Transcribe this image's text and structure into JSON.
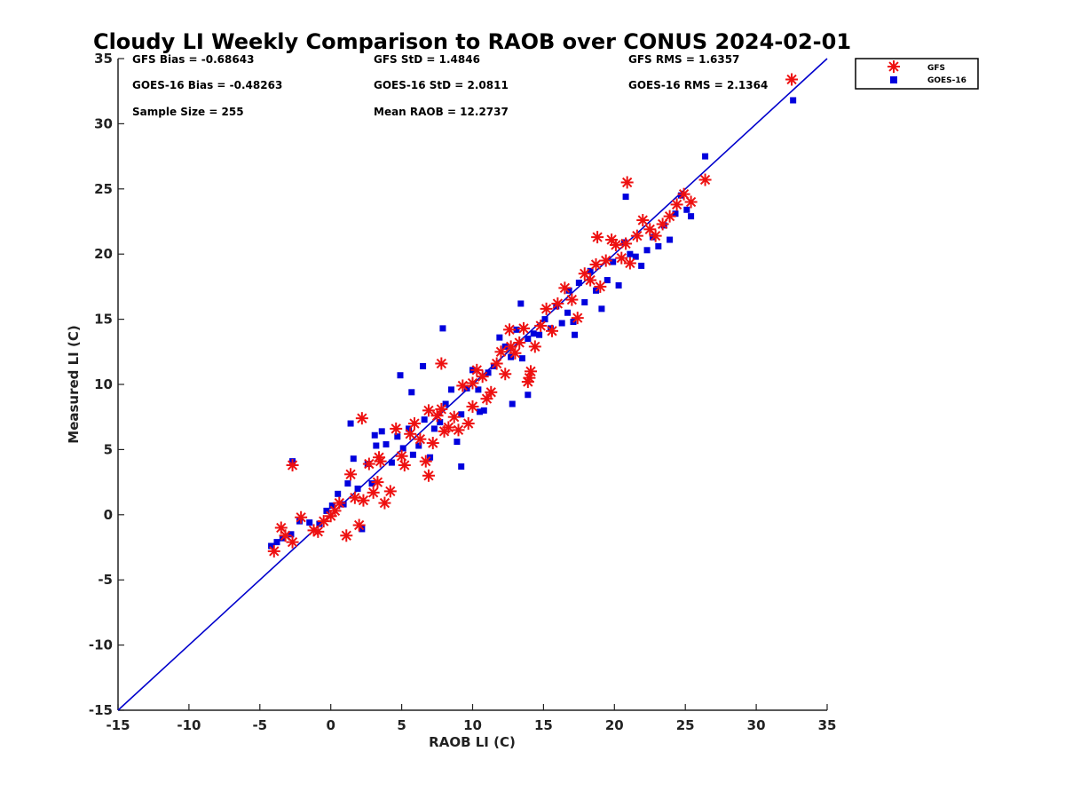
{
  "chart_data": {
    "type": "scatter",
    "title": "Cloudy LI Weekly Comparison to RAOB over CONUS 2024-02-01",
    "xlabel": "RAOB LI (C)",
    "ylabel": "Measured LI (C)",
    "xlim": [
      -15,
      35
    ],
    "ylim": [
      -15,
      35
    ],
    "xticks": [
      "-15",
      "-10",
      "-5",
      "0",
      "5",
      "10",
      "15",
      "20",
      "25",
      "30",
      "35"
    ],
    "yticks": [
      "-15",
      "-10",
      "-5",
      "0",
      "5",
      "10",
      "15",
      "20",
      "25",
      "30",
      "35"
    ],
    "grid": false,
    "legend_position": "outside-top-right",
    "reference_line": {
      "x": [
        -15,
        35
      ],
      "y": [
        -15,
        35
      ],
      "color": "#0000cc"
    },
    "stats": [
      "GFS Bias = -0.68643",
      "GFS StD = 1.4846",
      "GFS RMS = 1.6357",
      "GOES-16 Bias = -0.48263",
      "GOES-16 StD = 2.0811",
      "GOES-16 RMS = 2.1364",
      "Sample Size = 255",
      "Mean RAOB = 12.2737"
    ],
    "series": [
      {
        "name": "GFS",
        "marker": "asterisk",
        "color": "#ee1111",
        "x": [
          -4,
          -3.5,
          -3.2,
          -2.7,
          -2.1,
          -1.2,
          -0.9,
          -0.5,
          0,
          0.3,
          0.6,
          1.1,
          1.4,
          1.7,
          2.0,
          2.3,
          2.7,
          3.0,
          3.3,
          3.5,
          3.8,
          4.2,
          4.6,
          5.0,
          5.2,
          5.6,
          5.9,
          6.3,
          6.7,
          6.9,
          7.2,
          7.5,
          7.8,
          8.0,
          8.3,
          8.7,
          9.0,
          9.3,
          9.7,
          10.0,
          10.3,
          10.7,
          11.0,
          11.3,
          11.7,
          12.0,
          12.3,
          12.7,
          13.0,
          13.3,
          13.6,
          13.9,
          14.1,
          14.4,
          14.8,
          15.2,
          15.6,
          16.0,
          16.5,
          17.0,
          17.4,
          17.9,
          18.3,
          18.7,
          19.0,
          19.4,
          19.8,
          20.1,
          20.5,
          20.8,
          21.1,
          21.6,
          22.0,
          22.5,
          22.9,
          23.4,
          23.9,
          24.4,
          24.9,
          25.4,
          26.4,
          32.5,
          -2.7,
          2.2,
          7.8,
          18.8,
          20.9,
          14.0,
          12.6,
          10.0,
          6.9,
          3.4
        ],
        "y": [
          -2.8,
          -1.0,
          -1.6,
          -2.1,
          -0.2,
          -1.2,
          -1.3,
          -0.5,
          -0.1,
          0.3,
          0.9,
          -1.6,
          3.1,
          1.3,
          -0.8,
          1.1,
          3.9,
          1.7,
          2.5,
          4.1,
          0.9,
          1.8,
          6.6,
          4.5,
          3.8,
          6.2,
          7.0,
          5.8,
          4.1,
          3.0,
          5.5,
          7.6,
          8.1,
          6.4,
          6.7,
          7.5,
          6.5,
          9.9,
          7.0,
          8.3,
          11.1,
          10.6,
          8.9,
          9.4,
          11.6,
          12.5,
          10.8,
          12.9,
          12.4,
          13.2,
          14.3,
          10.2,
          11.0,
          12.9,
          14.5,
          15.8,
          14.1,
          16.2,
          17.4,
          16.5,
          15.1,
          18.5,
          18.0,
          19.2,
          17.5,
          19.5,
          21.1,
          20.7,
          19.7,
          20.8,
          19.3,
          21.4,
          22.6,
          21.9,
          21.4,
          22.3,
          22.9,
          23.8,
          24.6,
          24.0,
          25.7,
          33.4,
          3.8,
          7.4,
          11.6,
          21.3,
          25.5,
          10.5,
          14.2,
          10.1,
          8.0,
          4.4
        ]
      },
      {
        "name": "GOES-16",
        "marker": "square",
        "color": "#0000dd",
        "x": [
          -4.2,
          -3.8,
          -3.4,
          -2.8,
          -2.2,
          -1.5,
          -0.8,
          -0.3,
          0.1,
          0.5,
          0.9,
          1.2,
          1.6,
          1.9,
          2.2,
          2.6,
          2.9,
          3.2,
          3.6,
          3.9,
          4.3,
          4.7,
          5.1,
          5.5,
          5.8,
          6.2,
          6.6,
          7.0,
          7.3,
          7.7,
          8.1,
          8.5,
          8.9,
          9.2,
          9.6,
          10.0,
          10.4,
          10.8,
          11.1,
          11.5,
          11.9,
          12.3,
          12.7,
          13.1,
          13.5,
          13.9,
          14.3,
          14.7,
          15.1,
          15.5,
          15.9,
          16.3,
          16.7,
          17.1,
          17.5,
          17.9,
          18.3,
          18.7,
          19.1,
          19.5,
          19.9,
          20.3,
          20.7,
          21.1,
          21.5,
          21.9,
          22.3,
          22.7,
          23.1,
          23.5,
          23.9,
          24.3,
          24.7,
          25.1,
          25.4,
          26.4,
          32.6,
          -2.7,
          1.4,
          4.9,
          5.7,
          7.9,
          9.2,
          13.4,
          13.9,
          16.8,
          20.8,
          17.2,
          12.8,
          10.5,
          6.5,
          3.1
        ],
        "y": [
          -2.4,
          -2.1,
          -1.8,
          -1.5,
          -0.5,
          -0.6,
          -0.7,
          0.3,
          0.7,
          1.6,
          0.8,
          2.4,
          4.3,
          2.0,
          -1.1,
          3.9,
          2.4,
          5.3,
          6.4,
          5.4,
          4.0,
          6.0,
          5.1,
          6.6,
          4.6,
          5.3,
          7.3,
          4.4,
          6.6,
          7.1,
          8.5,
          9.6,
          5.6,
          7.7,
          9.7,
          11.1,
          9.6,
          8.0,
          10.9,
          11.4,
          13.6,
          12.9,
          12.1,
          14.2,
          12.0,
          13.5,
          13.9,
          13.8,
          15.0,
          14.3,
          16.0,
          14.7,
          15.5,
          14.8,
          17.8,
          16.3,
          18.7,
          17.2,
          15.8,
          18.0,
          19.4,
          17.6,
          20.9,
          20.0,
          19.8,
          19.1,
          20.3,
          21.3,
          20.6,
          22.2,
          21.1,
          23.1,
          24.5,
          23.4,
          22.9,
          27.5,
          31.8,
          4.1,
          7.0,
          10.7,
          9.4,
          14.3,
          3.7,
          16.2,
          9.2,
          17.2,
          24.4,
          13.8,
          8.5,
          7.9,
          11.4,
          6.1
        ]
      }
    ]
  }
}
